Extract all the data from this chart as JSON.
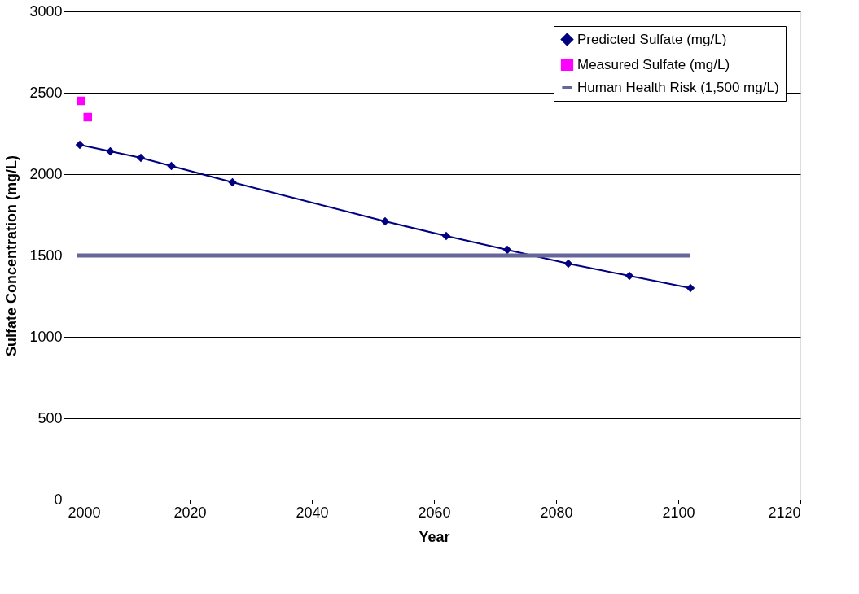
{
  "chart_data": {
    "type": "line",
    "xlabel": "Year",
    "ylabel": "Sulfate Concentration (mg/L)",
    "xlim": [
      2000,
      2120
    ],
    "xticks": [
      2000,
      2020,
      2040,
      2060,
      2080,
      2100,
      2120
    ],
    "ylim": [
      0,
      3000
    ],
    "yticks": [
      0,
      500,
      1000,
      1500,
      2000,
      2500,
      3000
    ],
    "grid": "y",
    "legend": "top right",
    "series": [
      {
        "name": "Predicted Sulfate (mg/L)",
        "marker": "diamond",
        "color": "#000080",
        "x": [
          2002,
          2007,
          2012,
          2017,
          2027,
          2052,
          2062,
          2072,
          2082,
          2092,
          2102
        ],
        "values": [
          2180,
          2140,
          2100,
          2050,
          1950,
          1710,
          1620,
          1535,
          1450,
          1375,
          1300
        ]
      },
      {
        "name": "Measured Sulfate (mg/L)",
        "type": "scatter",
        "marker": "square",
        "color": "#ff00ff",
        "x": [
          2002.2,
          2003.3
        ],
        "values": [
          2450,
          2350
        ]
      },
      {
        "name": "Human Health Risk (1,500 mg/L)",
        "marker": "none",
        "color": "#666699",
        "x": [
          2001.5,
          2102
        ],
        "values": [
          1500,
          1500
        ]
      }
    ]
  }
}
